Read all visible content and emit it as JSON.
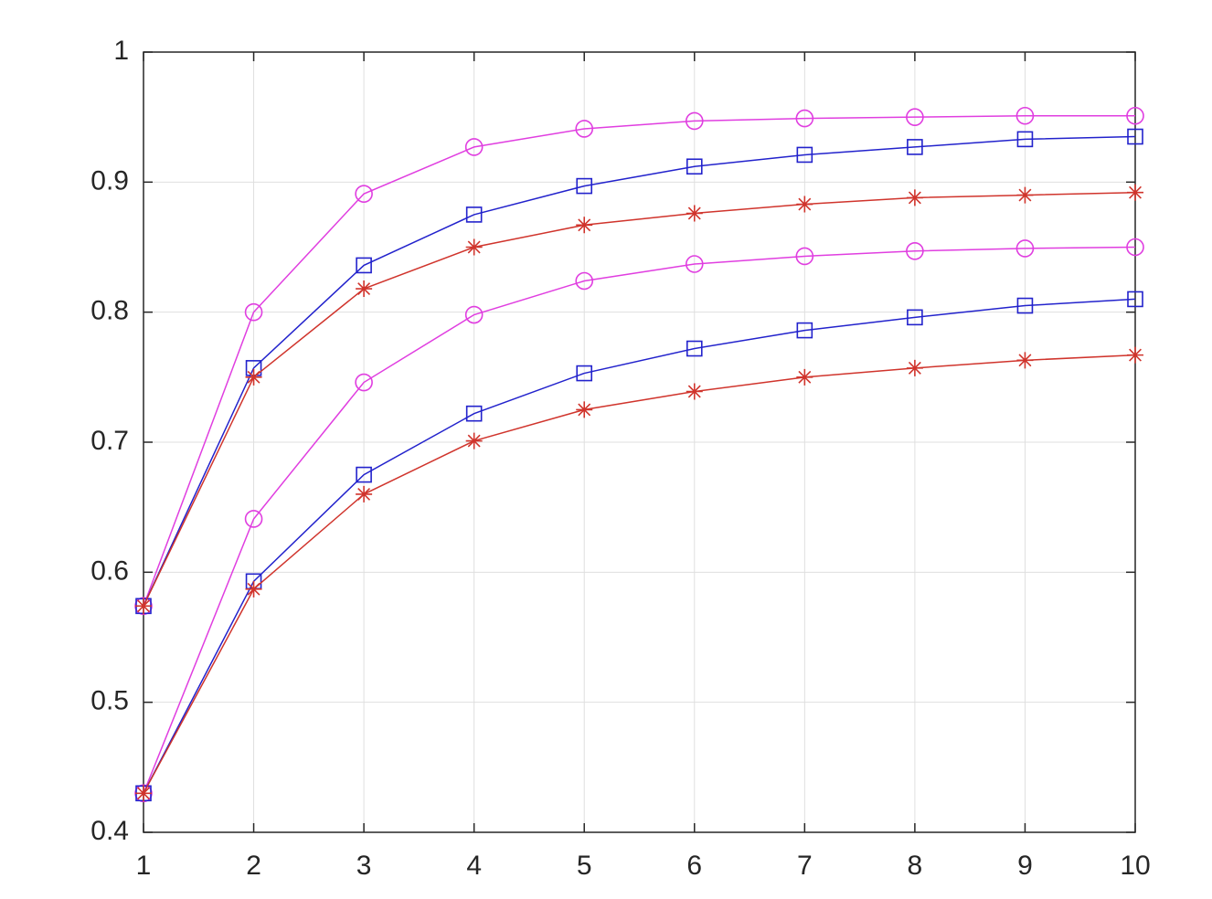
{
  "chart_data": {
    "type": "line",
    "x": [
      1,
      2,
      3,
      4,
      5,
      6,
      7,
      8,
      9,
      10
    ],
    "xlim": [
      1,
      10
    ],
    "xticks": [
      1,
      2,
      3,
      4,
      5,
      6,
      7,
      8,
      9,
      10
    ],
    "ylim": [
      0.4,
      1
    ],
    "yticks": [
      0.4,
      0.5,
      0.6,
      0.7,
      0.8,
      0.9,
      1
    ],
    "grid": true,
    "series": [
      {
        "color": "#e03ee0",
        "marker": "circle",
        "values": [
          0.574,
          0.8,
          0.891,
          0.927,
          0.941,
          0.947,
          0.949,
          0.95,
          0.951,
          0.951
        ]
      },
      {
        "color": "#2222cc",
        "marker": "square",
        "values": [
          0.574,
          0.757,
          0.836,
          0.875,
          0.897,
          0.912,
          0.921,
          0.927,
          0.933,
          0.935
        ]
      },
      {
        "color": "#d0342c",
        "marker": "star",
        "values": [
          0.574,
          0.75,
          0.818,
          0.85,
          0.867,
          0.876,
          0.883,
          0.888,
          0.89,
          0.892
        ]
      },
      {
        "color": "#e03ee0",
        "marker": "circle",
        "values": [
          0.43,
          0.641,
          0.746,
          0.798,
          0.824,
          0.837,
          0.843,
          0.847,
          0.849,
          0.85
        ]
      },
      {
        "color": "#2222cc",
        "marker": "square",
        "values": [
          0.43,
          0.593,
          0.675,
          0.722,
          0.753,
          0.772,
          0.786,
          0.796,
          0.805,
          0.81
        ]
      },
      {
        "color": "#d0342c",
        "marker": "star",
        "values": [
          0.43,
          0.587,
          0.66,
          0.701,
          0.725,
          0.739,
          0.75,
          0.757,
          0.763,
          0.767
        ]
      }
    ]
  }
}
